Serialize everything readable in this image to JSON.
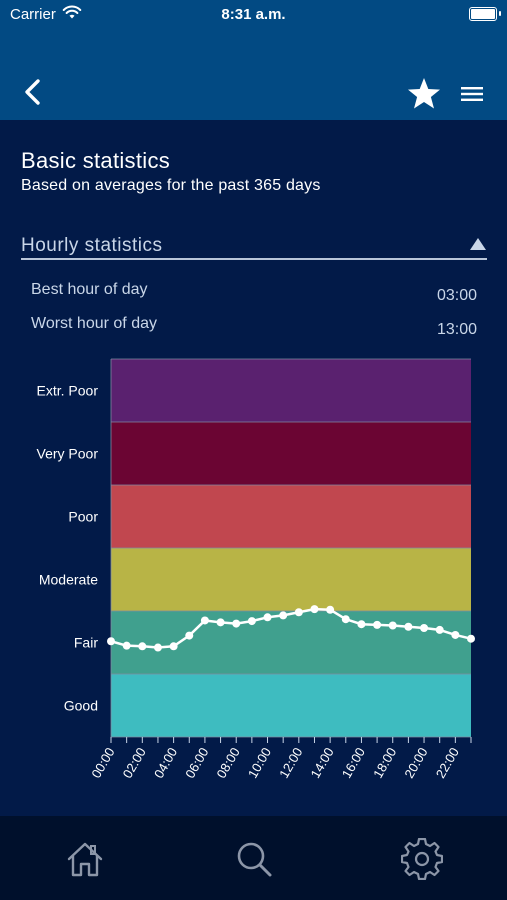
{
  "status_bar": {
    "carrier": "Carrier",
    "time": "8:31 a.m."
  },
  "nav": {
    "back_icon": "chevron-left-icon",
    "favorite_icon": "star-icon",
    "menu_icon": "hamburger-menu-icon"
  },
  "page": {
    "title": "Basic statistics",
    "subtitle": "Based on averages for the past 365 days"
  },
  "section": {
    "title": "Hourly statistics",
    "collapse_icon": "triangle-up-icon",
    "stats": [
      {
        "label": "Best hour of day",
        "value": "03:00"
      },
      {
        "label": "Worst hour of day",
        "value": "13:00"
      }
    ]
  },
  "colors": {
    "header": "#024a83",
    "background": "#021a48",
    "tabbar": "#00102c",
    "bands": [
      "#5a216f",
      "#6b0533",
      "#c1474f",
      "#b8b446",
      "#40a08e",
      "#3ebcc0"
    ]
  },
  "chart_data": {
    "type": "line",
    "y_categories": [
      "Extr. Poor",
      "Very Poor",
      "Poor",
      "Moderate",
      "Fair",
      "Good"
    ],
    "x": [
      "00:00",
      "01:00",
      "02:00",
      "03:00",
      "04:00",
      "05:00",
      "06:00",
      "07:00",
      "08:00",
      "09:00",
      "10:00",
      "11:00",
      "12:00",
      "13:00",
      "14:00",
      "15:00",
      "16:00",
      "17:00",
      "18:00",
      "19:00",
      "20:00",
      "21:00",
      "22:00",
      "23:00"
    ],
    "x_tick_labels": [
      "00:00",
      "02:00",
      "04:00",
      "06:00",
      "08:00",
      "10:00",
      "12:00",
      "14:00",
      "16:00",
      "18:00",
      "20:00",
      "22:00"
    ],
    "values": [
      1.52,
      1.45,
      1.44,
      1.42,
      1.44,
      1.61,
      1.85,
      1.82,
      1.8,
      1.84,
      1.9,
      1.93,
      1.98,
      2.03,
      2.02,
      1.87,
      1.79,
      1.78,
      1.77,
      1.75,
      1.73,
      1.7,
      1.62,
      1.56
    ],
    "ylim": [
      0,
      6
    ],
    "series_color": "#ffffff",
    "grid": true
  },
  "tabbar": {
    "items": [
      {
        "icon": "home-icon"
      },
      {
        "icon": "search-icon"
      },
      {
        "icon": "gear-icon"
      }
    ]
  }
}
